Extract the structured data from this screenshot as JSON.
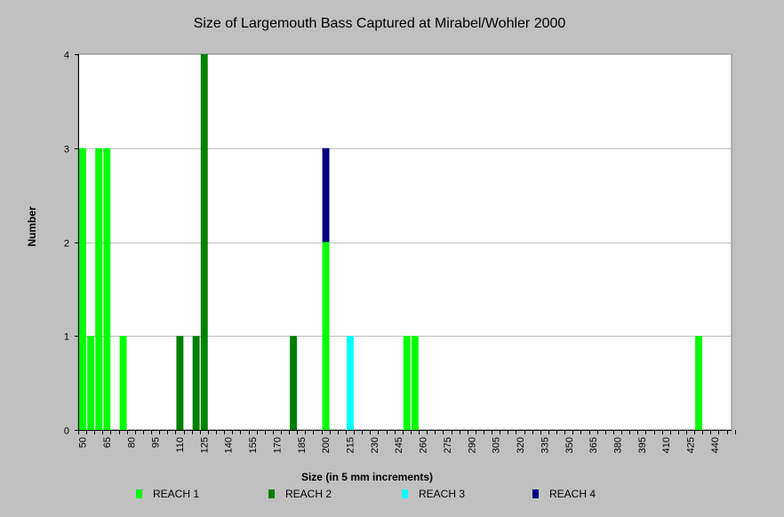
{
  "chart_data": {
    "type": "bar",
    "stacked": true,
    "title": "Size of Largemouth Bass Captured at Mirabel/Wohler 2000",
    "xlabel": "Size (in 5 mm increments)",
    "ylabel": "Number",
    "ylim": [
      0,
      4
    ],
    "yticks": [
      0,
      1,
      2,
      3,
      4
    ],
    "grid": true,
    "legend_position": "bottom",
    "x_tick_labels": [
      "50",
      "65",
      "80",
      "95",
      "110",
      "125",
      "140",
      "155",
      "170",
      "185",
      "200",
      "215",
      "230",
      "245",
      "260",
      "275",
      "290",
      "305",
      "320",
      "335",
      "350",
      "365",
      "380",
      "395",
      "410",
      "425",
      "440"
    ],
    "series": [
      {
        "name": "REACH 1",
        "color": "#00ff00",
        "points": [
          {
            "x": 50,
            "y": 3
          },
          {
            "x": 55,
            "y": 1
          },
          {
            "x": 60,
            "y": 3
          },
          {
            "x": 65,
            "y": 3
          },
          {
            "x": 75,
            "y": 1
          },
          {
            "x": 200,
            "y": 2
          },
          {
            "x": 250,
            "y": 1
          },
          {
            "x": 255,
            "y": 1
          },
          {
            "x": 430,
            "y": 1
          }
        ]
      },
      {
        "name": "REACH 2",
        "color": "#008000",
        "points": [
          {
            "x": 110,
            "y": 1
          },
          {
            "x": 120,
            "y": 1
          },
          {
            "x": 125,
            "y": 4
          },
          {
            "x": 180,
            "y": 1
          }
        ]
      },
      {
        "name": "REACH 3",
        "color": "#00ffff",
        "points": [
          {
            "x": 215,
            "y": 1
          }
        ]
      },
      {
        "name": "REACH 4",
        "color": "#000080",
        "points": [
          {
            "x": 200,
            "y": 1
          }
        ]
      }
    ]
  }
}
